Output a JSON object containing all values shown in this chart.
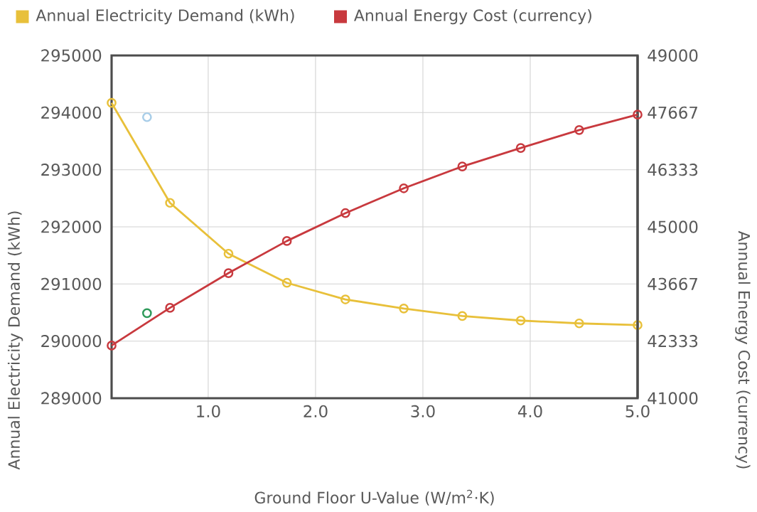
{
  "chart_data": {
    "type": "line",
    "xlabel": "Ground Floor U-Value (W/m$^{2}$·K)",
    "ylabel": "Annual Electricity Demand (kWh)",
    "y2label": "Annual Energy Cost (currency)",
    "x": [
      0.1,
      0.644,
      1.189,
      1.733,
      2.278,
      2.822,
      3.367,
      3.911,
      4.456,
      5.0
    ],
    "series": [
      {
        "name": "Annual Electricity Demand (kWh)",
        "color": "#e8c03a",
        "values": [
          294170,
          292420,
          291530,
          291020,
          290730,
          290570,
          290440,
          290360,
          290310,
          290280
        ]
      },
      {
        "name": "Annual Energy Cost (currency)",
        "color": "#c8393e",
        "axis": "y2",
        "values": [
          42230,
          43110,
          43920,
          44670,
          45320,
          45900,
          46410,
          46840,
          47260,
          47620
        ]
      },
      {
        "type": "scatter",
        "color": "#a8cde8",
        "x": [
          0.43
        ],
        "values": [
          293920
        ]
      },
      {
        "type": "scatter",
        "color": "#2e9a5a",
        "x": [
          0.43
        ],
        "values": [
          290490
        ]
      }
    ],
    "xlim": [
      0.1,
      5.0
    ],
    "xticks": [
      {
        "value": 1,
        "label": "1.0"
      },
      {
        "value": 2,
        "label": "2.0"
      },
      {
        "value": 3,
        "label": "3.0"
      },
      {
        "value": 4,
        "label": "4.0"
      },
      {
        "value": 5,
        "label": "5.0"
      }
    ],
    "ylim": [
      289000,
      295000
    ],
    "yticks": [
      289000,
      290000,
      291000,
      292000,
      293000,
      294000,
      295000
    ],
    "y2lim": [
      41000,
      49000
    ],
    "y2ticks": [
      41000,
      42333,
      43667,
      45000,
      46333,
      47667,
      49000
    ],
    "grid": true,
    "legend": "top left",
    "marker": "circle",
    "line_style": "solid"
  }
}
